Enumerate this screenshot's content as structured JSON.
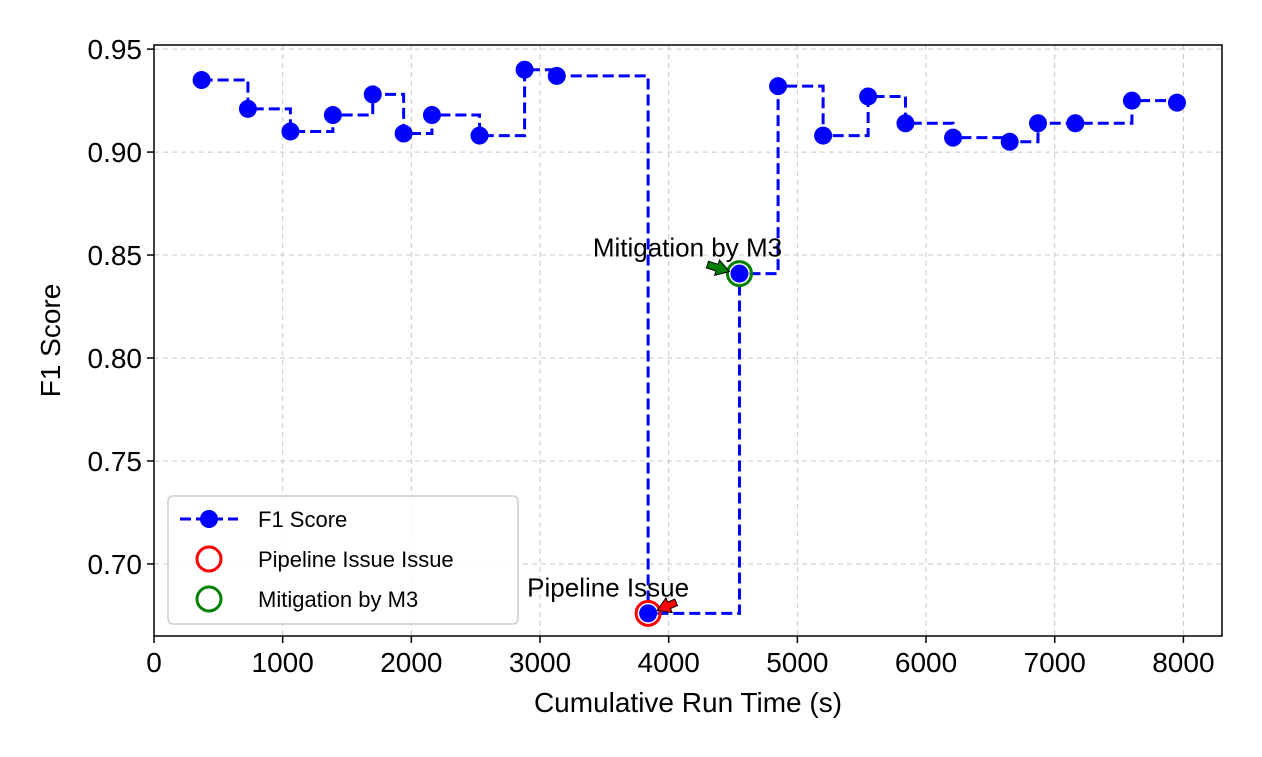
{
  "chart_data": {
    "type": "line",
    "xlabel": "Cumulative Run Time (s)",
    "ylabel": "F1 Score",
    "xlim": [
      0,
      8300
    ],
    "ylim": [
      0.665,
      0.952
    ],
    "xticks": [
      0,
      1000,
      2000,
      3000,
      4000,
      5000,
      6000,
      7000,
      8000
    ],
    "xtick_labels": [
      "0",
      "1000",
      "2000",
      "3000",
      "4000",
      "5000",
      "6000",
      "7000",
      "8000"
    ],
    "yticks": [
      0.7,
      0.75,
      0.8,
      0.85,
      0.9,
      0.95
    ],
    "ytick_labels": [
      "0.70",
      "0.75",
      "0.80",
      "0.85",
      "0.90",
      "0.95"
    ],
    "grid": true,
    "series": [
      {
        "name": "F1 Score",
        "style": "dashed step line with circle markers",
        "color": "#0000ff",
        "x": [
          370,
          730,
          1060,
          1390,
          1700,
          1940,
          2160,
          2530,
          2880,
          3130,
          3840,
          4550,
          4850,
          5200,
          5550,
          5840,
          6210,
          6650,
          6870,
          7160,
          7600,
          7950
        ],
        "y": [
          0.935,
          0.921,
          0.91,
          0.918,
          0.928,
          0.909,
          0.918,
          0.908,
          0.94,
          0.937,
          0.676,
          0.841,
          0.932,
          0.908,
          0.927,
          0.914,
          0.907,
          0.905,
          0.914,
          0.914,
          0.925,
          0.924
        ]
      }
    ],
    "highlights": [
      {
        "label": "Pipeline Issue Issue",
        "color": "#ff0000",
        "x": 3840,
        "y": 0.676
      },
      {
        "label": "Mitigation by M3",
        "color": "#008000",
        "x": 4550,
        "y": 0.841
      }
    ],
    "annotations": [
      {
        "text": "Pipeline Issue",
        "x": 3840,
        "y": 0.676,
        "arrow_color": "#ff0000"
      },
      {
        "text": "Mitigation by M3",
        "x": 4550,
        "y": 0.841,
        "arrow_color": "#008000"
      }
    ],
    "legend": {
      "position": "lower-left",
      "entries": [
        "F1 Score",
        "Pipeline Issue Issue",
        "Mitigation by M3"
      ]
    }
  }
}
